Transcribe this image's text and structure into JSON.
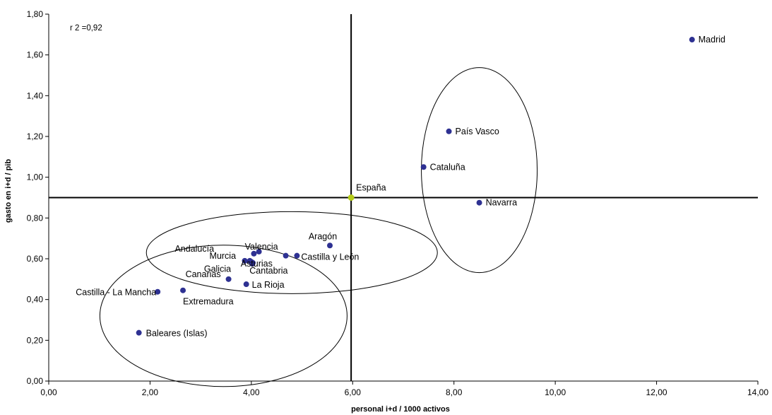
{
  "chart_data": {
    "type": "scatter",
    "title": "",
    "xlabel": "personal i+d / 1000 activos",
    "ylabel": "gasto en i+d / pib",
    "xlim": [
      0,
      14
    ],
    "ylim": [
      0,
      1.8
    ],
    "xticks": [
      0,
      2,
      4,
      6,
      8,
      10,
      12,
      14
    ],
    "yticks": [
      0,
      0.2,
      0.4,
      0.6,
      0.8,
      1.0,
      1.2,
      1.4,
      1.6,
      1.8
    ],
    "xtick_labels": [
      "0,00",
      "2,00",
      "4,00",
      "6,00",
      "8,00",
      "10,00",
      "12,00",
      "14,00"
    ],
    "ytick_labels": [
      "0,00",
      "0,20",
      "0,40",
      "0,60",
      "0,80",
      "1,00",
      "1,20",
      "1,40",
      "1,60",
      "1,80"
    ],
    "grid": false,
    "annotation": "r 2 =0,92",
    "reference_lines": {
      "x": 5.97,
      "y": 0.9
    },
    "colors": {
      "point": "#2e3192",
      "reference_point": "#b5cc18"
    },
    "points": [
      {
        "label": "Madrid",
        "x": 12.7,
        "y": 1.675
      },
      {
        "label": "País Vasco",
        "x": 7.9,
        "y": 1.225
      },
      {
        "label": "Cataluña",
        "x": 7.4,
        "y": 1.05
      },
      {
        "label": "Navarra",
        "x": 8.5,
        "y": 0.875
      },
      {
        "label": "Aragón",
        "x": 5.55,
        "y": 0.665
      },
      {
        "label": "Valencia",
        "x": 4.15,
        "y": 0.635
      },
      {
        "label": "Andalucía",
        "x": 4.05,
        "y": 0.625
      },
      {
        "label": "Castilla y León",
        "x": 4.9,
        "y": 0.615
      },
      {
        "label": "",
        "x": 4.68,
        "y": 0.615
      },
      {
        "label": "Murcia",
        "x": 3.87,
        "y": 0.59
      },
      {
        "label": "Asturias",
        "x": 3.97,
        "y": 0.59
      },
      {
        "label": "",
        "x": 4.03,
        "y": 0.58
      },
      {
        "label": "Galicia",
        "x": 4.0,
        "y": 0.585
      },
      {
        "label": "Cantabria",
        "x": 4.02,
        "y": 0.575
      },
      {
        "label": "Canarias",
        "x": 3.55,
        "y": 0.5
      },
      {
        "label": "La Rioja",
        "x": 3.9,
        "y": 0.475
      },
      {
        "label": "Extremadura",
        "x": 2.65,
        "y": 0.445
      },
      {
        "label": "Castilla - La Mancha",
        "x": 2.15,
        "y": 0.438
      },
      {
        "label": "Baleares (Islas)",
        "x": 1.78,
        "y": 0.237
      }
    ],
    "reference_point": {
      "label": "España",
      "x": 5.97,
      "y": 0.9
    },
    "groups": [
      {
        "center_x": 8.5,
        "center_y": 1.035
      },
      {
        "center_x": 4.8,
        "center_y": 0.63
      },
      {
        "center_x": 3.45,
        "center_y": 0.32
      }
    ]
  }
}
